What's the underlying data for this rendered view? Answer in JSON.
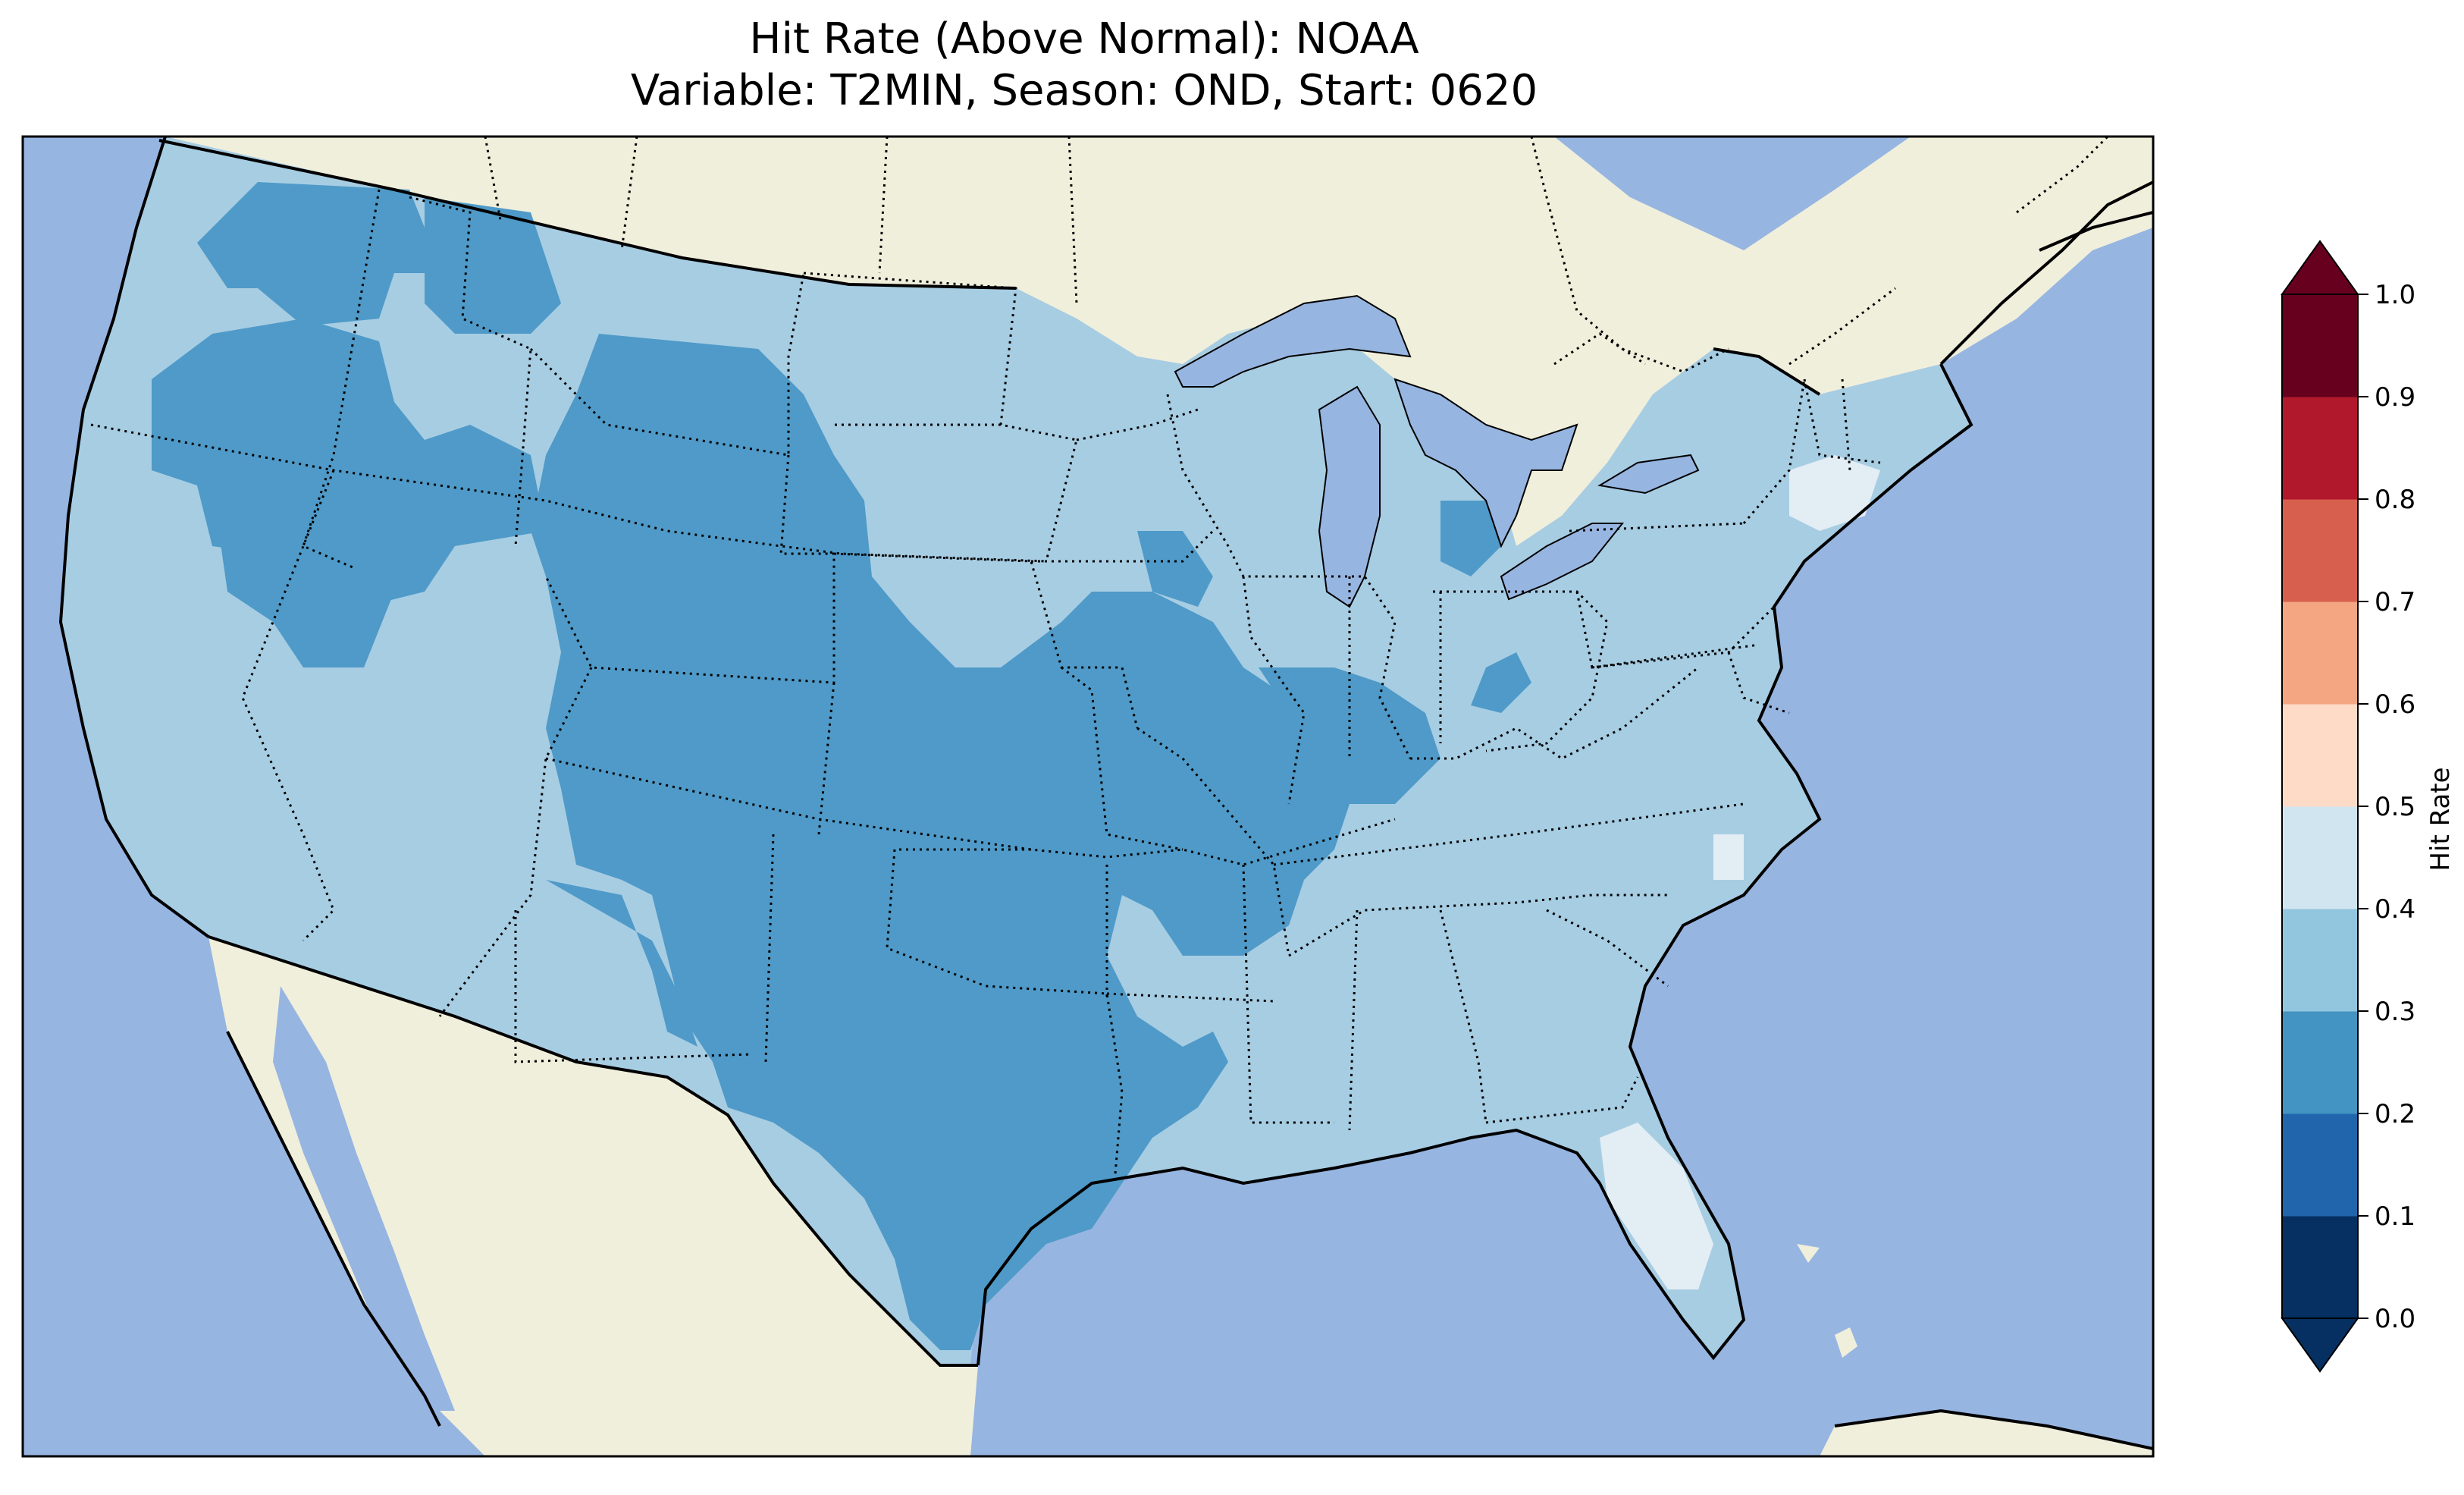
{
  "title": {
    "line1": "Hit Rate (Above Normal): NOAA",
    "line2": "Variable: T2MIN, Season: OND, Start: 0620"
  },
  "colors": {
    "ocean": "#97b5e1",
    "land": "#f0efdc",
    "bins": [
      "#053061",
      "#2166ac",
      "#4393c3",
      "#92c5de",
      "#d1e5f0",
      "#fddbc7",
      "#f4a582",
      "#d6604d",
      "#b2182b",
      "#67001f"
    ],
    "bins_shown_on_map": {
      "0.2-0.3": "#4f9ac8",
      "0.3-0.4": "#a7cde3",
      "0.4-0.5": "#e3edf4"
    }
  },
  "colorbar": {
    "label": "Hit Rate",
    "ticks": [
      "0.0",
      "0.1",
      "0.2",
      "0.3",
      "0.4",
      "0.5",
      "0.6",
      "0.7",
      "0.8",
      "0.9",
      "1.0"
    ],
    "extend": "both"
  },
  "map": {
    "projection": "PlateCarree",
    "region": "Contiguous United States",
    "lon_range": [
      -125,
      -67
    ],
    "lat_range": [
      23,
      50
    ],
    "features": [
      "coastlines",
      "state borders (dotted)",
      "country borders (solid)",
      "lakes"
    ]
  }
}
